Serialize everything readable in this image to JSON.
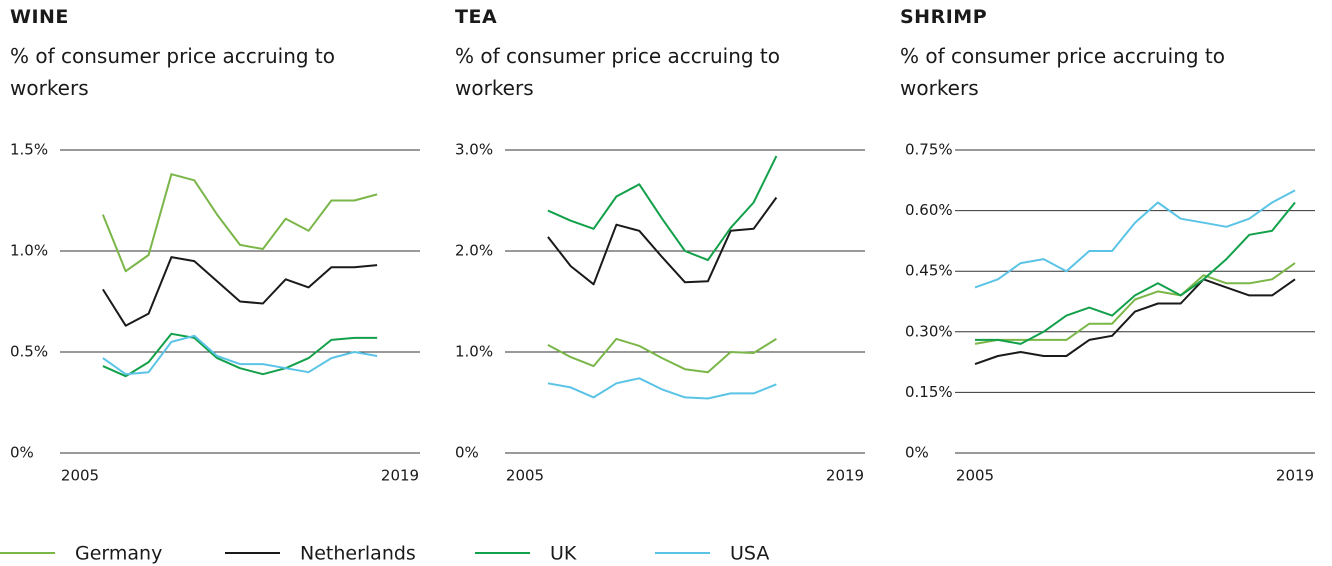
{
  "chart_data": [
    {
      "type": "line",
      "title": "WINE",
      "subtitle": "% of consumer price accruing to workers",
      "x": [
        2006,
        2007,
        2008,
        2009,
        2010,
        2011,
        2012,
        2013,
        2014,
        2015,
        2016,
        2017,
        2018
      ],
      "xlim": [
        2005,
        2019
      ],
      "xticks": [
        2005,
        2019
      ],
      "ylim": [
        0,
        1.5
      ],
      "yticks": [
        {
          "value": 0,
          "label": "0%"
        },
        {
          "value": 0.5,
          "label": "0.5%"
        },
        {
          "value": 1.0,
          "label": "1.0%"
        },
        {
          "value": 1.5,
          "label": "1.5%"
        }
      ],
      "grid": true,
      "series": [
        {
          "name": "Germany",
          "color": "#7ab648",
          "values": [
            1.18,
            0.9,
            0.98,
            1.38,
            1.35,
            1.18,
            1.03,
            1.01,
            1.16,
            1.1,
            1.25,
            1.25,
            1.28
          ]
        },
        {
          "name": "Netherlands",
          "color": "#1a1a1a",
          "values": [
            0.81,
            0.63,
            0.69,
            0.97,
            0.95,
            0.85,
            0.75,
            0.74,
            0.86,
            0.82,
            0.92,
            0.92,
            0.93
          ]
        },
        {
          "name": "UK",
          "color": "#13a04a",
          "values": [
            0.43,
            0.38,
            0.45,
            0.59,
            0.57,
            0.47,
            0.42,
            0.39,
            0.42,
            0.47,
            0.56,
            0.57,
            0.57
          ]
        },
        {
          "name": "USA",
          "color": "#5bc4e6",
          "values": [
            0.47,
            0.39,
            0.4,
            0.55,
            0.58,
            0.48,
            0.44,
            0.44,
            0.42,
            0.4,
            0.47,
            0.5,
            0.48
          ]
        }
      ]
    },
    {
      "type": "line",
      "title": "TEA",
      "subtitle": "% of consumer price accruing to workers",
      "x": [
        2006,
        2007,
        2008,
        2009,
        2010,
        2011,
        2012,
        2013,
        2014,
        2015,
        2016
      ],
      "xlim": [
        2005,
        2019
      ],
      "xticks": [
        2005,
        2019
      ],
      "ylim": [
        0,
        3.0
      ],
      "yticks": [
        {
          "value": 0,
          "label": "0%"
        },
        {
          "value": 1.0,
          "label": "1.0%"
        },
        {
          "value": 2.0,
          "label": "2.0%"
        },
        {
          "value": 3.0,
          "label": "3.0%"
        }
      ],
      "grid": true,
      "series": [
        {
          "name": "Germany",
          "color": "#7ab648",
          "values": [
            1.07,
            0.95,
            0.86,
            1.13,
            1.06,
            0.94,
            0.83,
            0.8,
            1.0,
            0.99,
            1.13
          ]
        },
        {
          "name": "Netherlands",
          "color": "#1a1a1a",
          "values": [
            2.14,
            1.85,
            1.67,
            2.26,
            2.2,
            1.94,
            1.69,
            1.7,
            2.2,
            2.22,
            2.53
          ]
        },
        {
          "name": "UK",
          "color": "#13a04a",
          "values": [
            2.4,
            2.3,
            2.22,
            2.54,
            2.66,
            2.32,
            2.0,
            1.91,
            2.23,
            2.48,
            2.94
          ]
        },
        {
          "name": "USA",
          "color": "#5bc4e6",
          "values": [
            0.69,
            0.65,
            0.55,
            0.69,
            0.74,
            0.63,
            0.55,
            0.54,
            0.59,
            0.59,
            0.68
          ]
        }
      ]
    },
    {
      "type": "line",
      "title": "SHRIMP",
      "subtitle": "% of consumer price accruing to workers",
      "x": [
        2005,
        2006,
        2007,
        2008,
        2009,
        2010,
        2011,
        2012,
        2013,
        2014,
        2015,
        2016,
        2017,
        2018,
        2019
      ],
      "xlim": [
        2005,
        2019
      ],
      "xticks": [
        2005,
        2019
      ],
      "ylim": [
        0,
        0.75
      ],
      "yticks": [
        {
          "value": 0,
          "label": "0%"
        },
        {
          "value": 0.15,
          "label": "0.15%"
        },
        {
          "value": 0.3,
          "label": "0.30%"
        },
        {
          "value": 0.45,
          "label": "0.45%"
        },
        {
          "value": 0.6,
          "label": "0.60%"
        },
        {
          "value": 0.75,
          "label": "0.75%"
        }
      ],
      "grid": true,
      "series": [
        {
          "name": "Germany",
          "color": "#7ab648",
          "values": [
            0.27,
            0.28,
            0.28,
            0.28,
            0.28,
            0.32,
            0.32,
            0.38,
            0.4,
            0.39,
            0.44,
            0.42,
            0.42,
            0.43,
            0.47
          ]
        },
        {
          "name": "Netherlands",
          "color": "#1a1a1a",
          "values": [
            0.22,
            0.24,
            0.25,
            0.24,
            0.24,
            0.28,
            0.29,
            0.35,
            0.37,
            0.37,
            0.43,
            0.41,
            0.39,
            0.39,
            0.43
          ]
        },
        {
          "name": "UK",
          "color": "#13a04a",
          "values": [
            0.28,
            0.28,
            0.27,
            0.3,
            0.34,
            0.36,
            0.34,
            0.39,
            0.42,
            0.39,
            0.43,
            0.48,
            0.54,
            0.55,
            0.62
          ]
        },
        {
          "name": "USA",
          "color": "#5bc4e6",
          "values": [
            0.41,
            0.43,
            0.47,
            0.48,
            0.45,
            0.5,
            0.5,
            0.57,
            0.62,
            0.58,
            0.57,
            0.56,
            0.58,
            0.62,
            0.65
          ]
        }
      ]
    }
  ]
}
